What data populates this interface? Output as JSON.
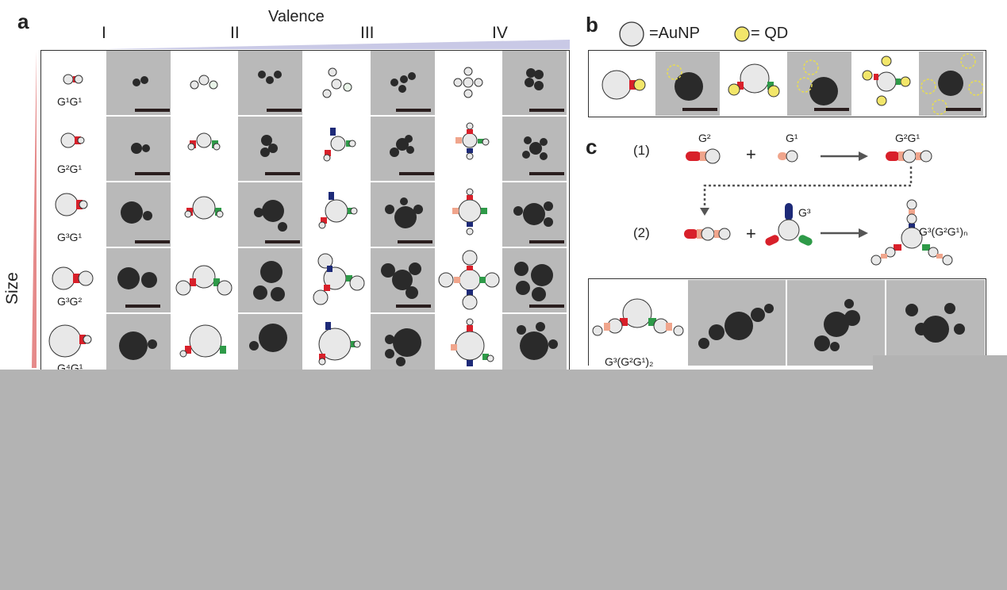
{
  "panel_a": {
    "letter": "a",
    "valence_title": "Valence",
    "valence_levels": [
      "I",
      "II",
      "III",
      "IV"
    ],
    "size_label": "Size",
    "row_labels": [
      "G¹G¹",
      "G²G¹",
      "G³G¹",
      "G³G²",
      "G⁴G¹"
    ]
  },
  "panel_b": {
    "letter": "b",
    "legend_aunp": "=AuNP",
    "legend_qd": "= QD"
  },
  "panel_c": {
    "letter": "c",
    "step1": "(1)",
    "step2": "(2)",
    "plus": "+",
    "g2": "G²",
    "g1": "G¹",
    "g2g1": "G²G¹",
    "g3": "G³",
    "product": "G³(G²G¹)ₙ",
    "bottom_label": "G³(G²G¹)₂"
  },
  "colors": {
    "aunp_fill": "#e8e8e8",
    "qd_fill": "#f2e66a",
    "red": "#d8202a",
    "green": "#2e9a48",
    "navy": "#1d2a78",
    "salmon": "#f0a58c",
    "valence_wedge": "#c9c9e6",
    "size_wedge": "#e58a8a",
    "tem_gray": "#b9b9b9",
    "particle": "#2a2a2a"
  }
}
